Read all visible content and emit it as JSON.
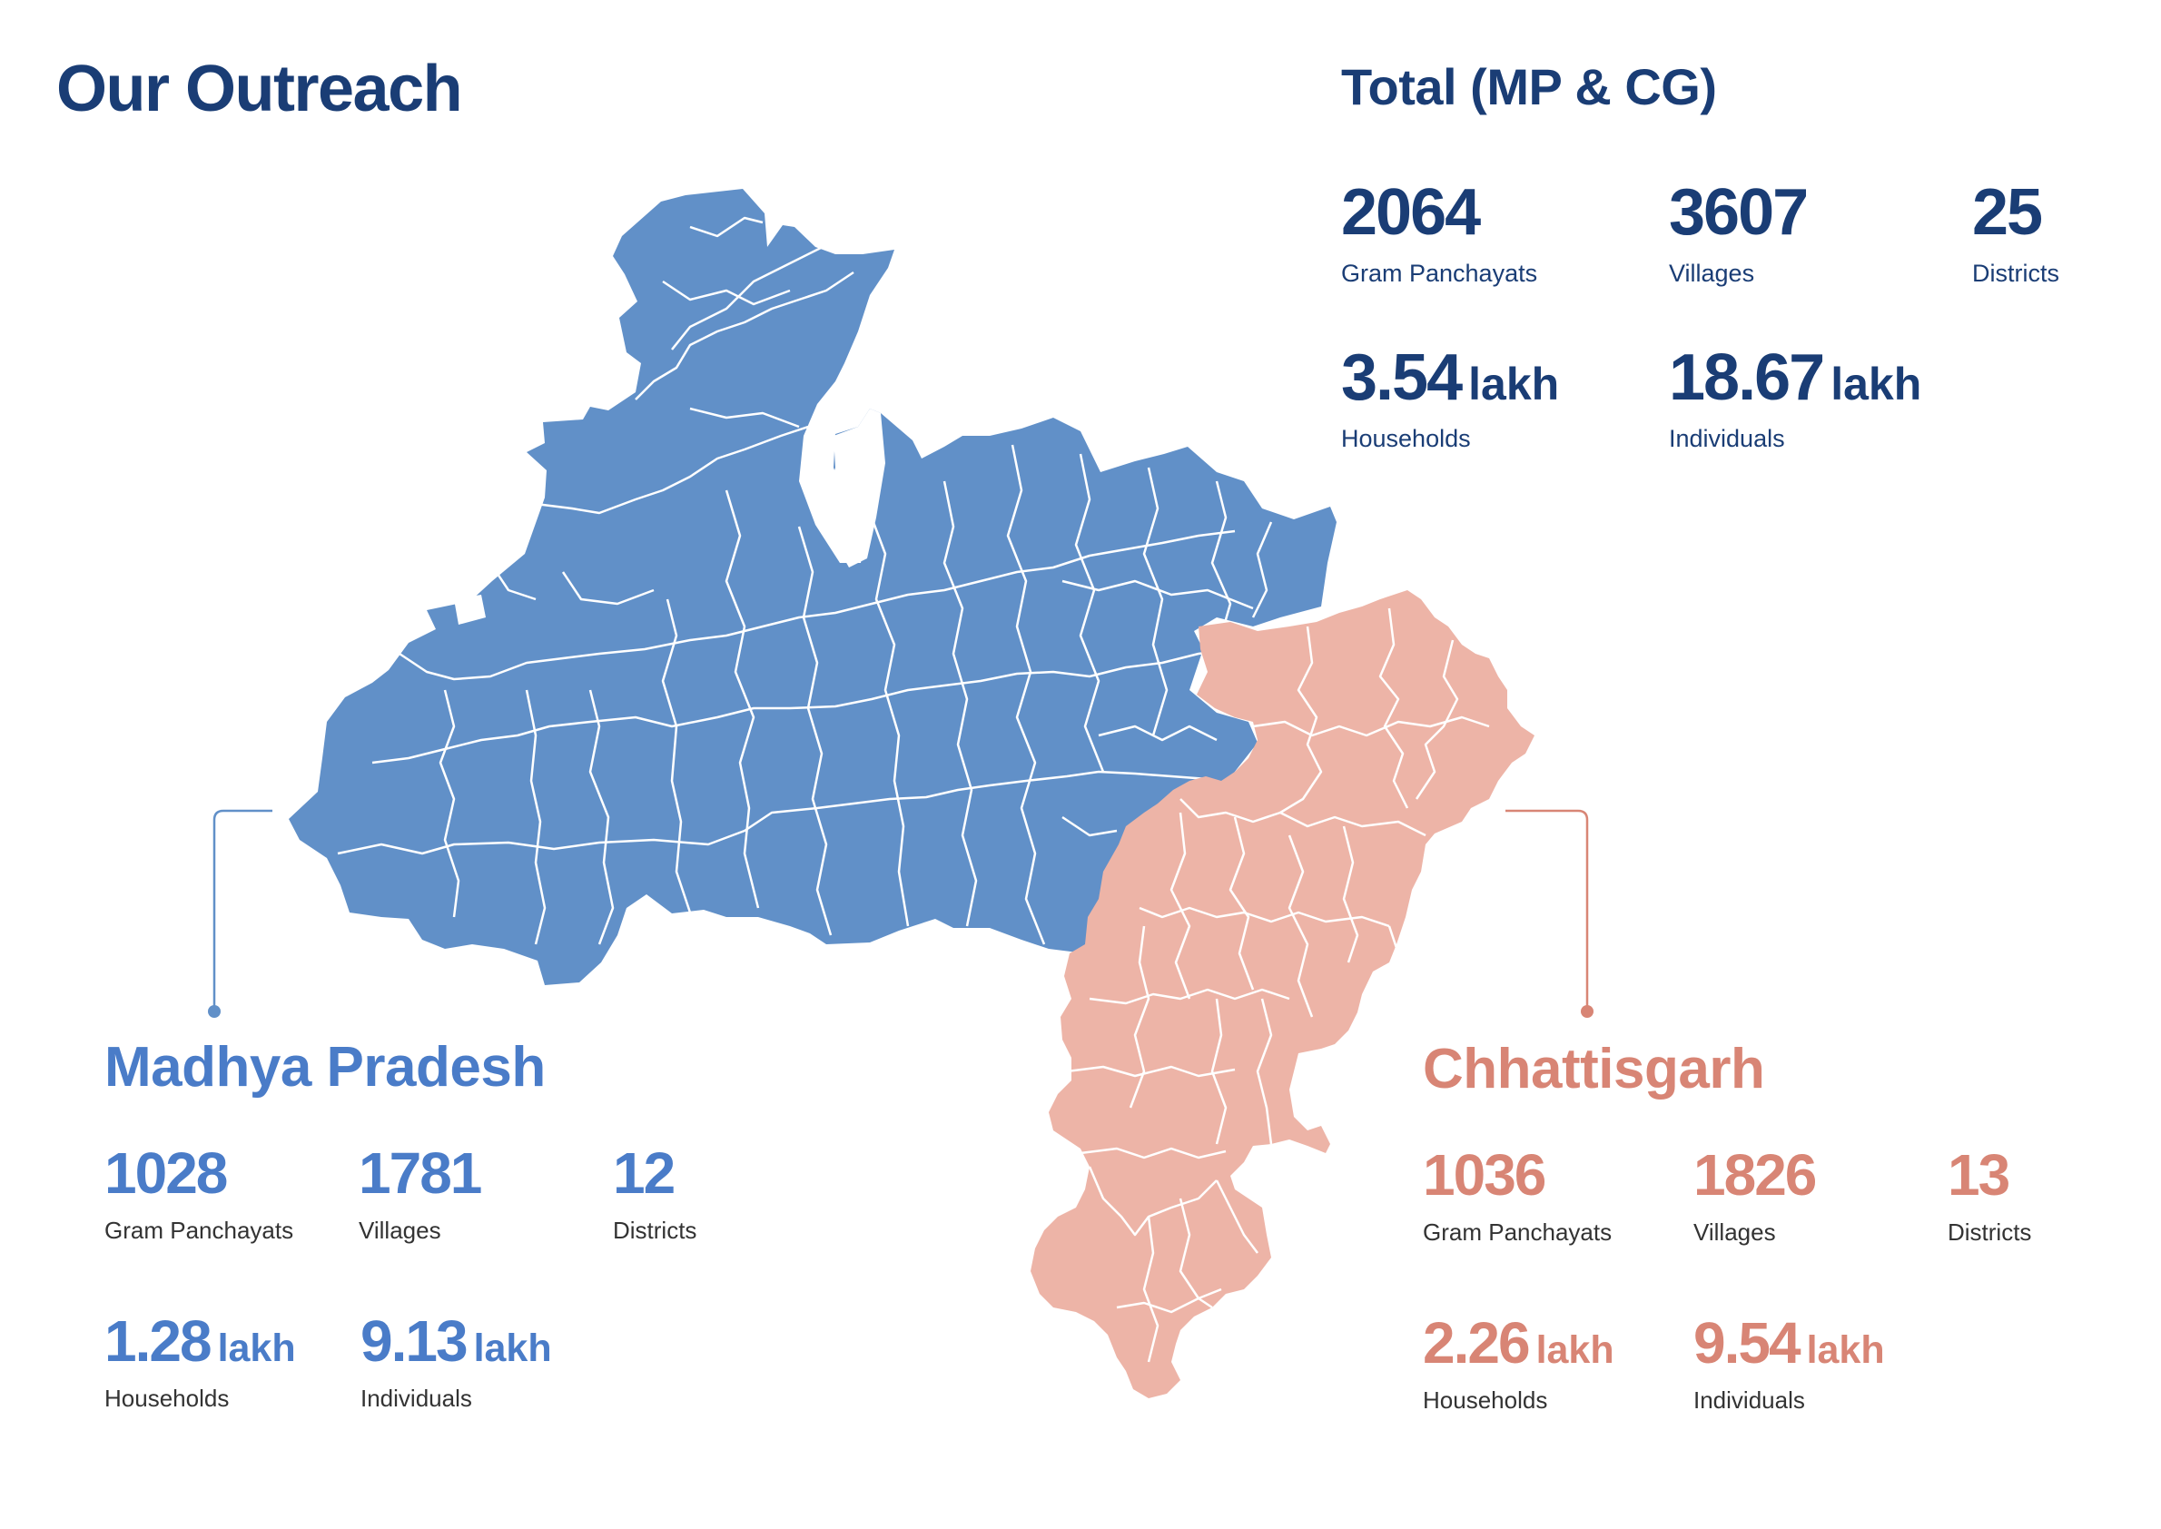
{
  "page_title": "Our Outreach",
  "total": {
    "title": "Total  (MP & CG)",
    "gram_panchayats": {
      "value": "2064",
      "label": "Gram Panchayats"
    },
    "villages": {
      "value": "3607",
      "label": "Villages"
    },
    "districts": {
      "value": "25",
      "label": "Districts"
    },
    "households": {
      "value": "3.54",
      "unit": "lakh",
      "label": "Households"
    },
    "individuals": {
      "value": "18.67",
      "unit": "lakh",
      "label": "Individuals"
    }
  },
  "madhya_pradesh": {
    "title": "Madhya Pradesh",
    "color": "#6190c8",
    "gram_panchayats": {
      "value": "1028",
      "label": "Gram Panchayats"
    },
    "villages": {
      "value": "1781",
      "label": "Villages"
    },
    "districts": {
      "value": "12",
      "label": "Districts"
    },
    "households": {
      "value": "1.28",
      "unit": "lakh",
      "label": "Households"
    },
    "individuals": {
      "value": "9.13",
      "unit": "lakh",
      "label": "Individuals"
    }
  },
  "chhattisgarh": {
    "title": "Chhattisgarh",
    "color": "#edb4a7",
    "gram_panchayats": {
      "value": "1036",
      "label": "Gram Panchayats"
    },
    "villages": {
      "value": "1826",
      "label": "Villages"
    },
    "districts": {
      "value": "13",
      "label": "Districts"
    },
    "households": {
      "value": "2.26",
      "unit": "lakh",
      "label": "Households"
    },
    "individuals": {
      "value": "9.54",
      "unit": "lakh",
      "label": "Individuals"
    }
  },
  "colors": {
    "title_navy": "#1a3d75",
    "mp_text": "#4a7cc8",
    "cg_text": "#d88575",
    "mp_fill": "#6190c8",
    "cg_fill": "#edb4a7",
    "district_borders": "#ffffff"
  }
}
